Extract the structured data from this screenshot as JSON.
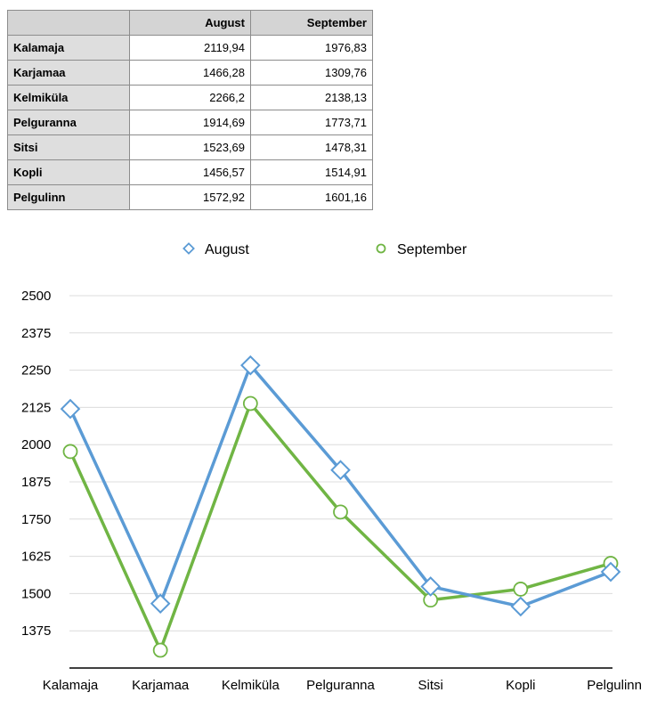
{
  "table": {
    "columns": [
      "August",
      "September"
    ],
    "rows": [
      {
        "label": "Kalamaja",
        "values": [
          "2119,94",
          "1976,83"
        ]
      },
      {
        "label": "Karjamaa",
        "values": [
          "1466,28",
          "1309,76"
        ]
      },
      {
        "label": "Kelmiküla",
        "values": [
          "2266,2",
          "2138,13"
        ]
      },
      {
        "label": "Pelguranna",
        "values": [
          "1914,69",
          "1773,71"
        ]
      },
      {
        "label": "Sitsi",
        "values": [
          "1523,69",
          "1478,31"
        ]
      },
      {
        "label": "Kopli",
        "values": [
          "1456,57",
          "1514,91"
        ]
      },
      {
        "label": "Pelgulinn",
        "values": [
          "1572,92",
          "1601,16"
        ]
      }
    ]
  },
  "chart_data": {
    "type": "line",
    "categories": [
      "Kalamaja",
      "Karjamaa",
      "Kelmiküla",
      "Pelguranna",
      "Sitsi",
      "Kopli",
      "Pelgulinn"
    ],
    "series": [
      {
        "name": "August",
        "values": [
          2119.94,
          1466.28,
          2266.2,
          1914.69,
          1523.69,
          1456.57,
          1572.92
        ],
        "color": "#5b9bd5",
        "marker": "diamond"
      },
      {
        "name": "September",
        "values": [
          1976.83,
          1309.76,
          2138.13,
          1773.71,
          1478.31,
          1514.91,
          1601.16
        ],
        "color": "#70b544",
        "marker": "circle"
      }
    ],
    "yticks": [
      1375,
      1500,
      1625,
      1750,
      1875,
      2000,
      2125,
      2250,
      2375,
      2500
    ],
    "ylim": [
      1250,
      2500
    ],
    "grid": true,
    "legend": "top-center",
    "title": "",
    "xlabel": "",
    "ylabel": ""
  }
}
